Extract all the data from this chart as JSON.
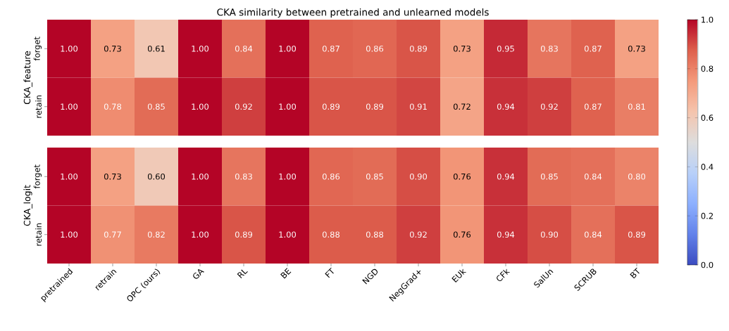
{
  "chart_data": [
    {
      "type": "heatmap",
      "title": "CKA similarity between pretrained and unlearned models",
      "ylabel": "CKA_feature",
      "categories": [
        null,
        null,
        null,
        null,
        null,
        null,
        null,
        null,
        null,
        null,
        null,
        null,
        null,
        null
      ],
      "y_categories": [
        "forget",
        "retain"
      ],
      "cells": [
        [
          1.0,
          0.73,
          0.61,
          1.0,
          0.84,
          1.0,
          0.87,
          0.86,
          0.89,
          0.73,
          0.95,
          0.83,
          0.87,
          0.73
        ],
        [
          1.0,
          0.78,
          0.85,
          1.0,
          0.92,
          1.0,
          0.89,
          0.89,
          0.91,
          0.72,
          0.94,
          0.92,
          0.87,
          0.81
        ]
      ],
      "cell_labels": [
        [
          "1.00",
          "0.73",
          "0.61",
          "1.00",
          "0.84",
          "1.00",
          "0.87",
          "0.86",
          "0.89",
          "0.73",
          "0.95",
          "0.83",
          "0.87",
          "0.73"
        ],
        [
          "1.00",
          "0.78",
          "0.85",
          "1.00",
          "0.92",
          "1.00",
          "0.89",
          "0.89",
          "0.91",
          "0.72",
          "0.94",
          "0.92",
          "0.87",
          "0.81"
        ]
      ],
      "clim": [
        0,
        1
      ],
      "cticks": [
        {
          "value": 0,
          "label": "0.0"
        },
        {
          "value": 0.2,
          "label": "0.2"
        },
        {
          "value": 0.4,
          "label": "0.4"
        },
        {
          "value": 0.6,
          "label": "0.6"
        },
        {
          "value": 0.8,
          "label": "0.8"
        },
        {
          "value": 1,
          "label": "1.0"
        }
      ],
      "tick_labels": "y"
    },
    {
      "type": "heatmap",
      "ylabel": "CKA_logit",
      "categories": [
        "pretrained",
        "retrain",
        "OPC (ours)",
        "GA",
        "RL",
        "BE",
        "FT",
        "NGD",
        "NegGrad+",
        "EUk",
        "CFk",
        "SalUn",
        "SCRUB",
        "BT"
      ],
      "y_categories": [
        "forget",
        "retain"
      ],
      "cells": [
        [
          1.0,
          0.73,
          0.6,
          1.0,
          0.83,
          1.0,
          0.86,
          0.85,
          0.9,
          0.76,
          0.94,
          0.85,
          0.84,
          0.8
        ],
        [
          1.0,
          0.77,
          0.82,
          1.0,
          0.89,
          1.0,
          0.88,
          0.88,
          0.92,
          0.76,
          0.94,
          0.9,
          0.84,
          0.89
        ]
      ],
      "cell_labels": [
        [
          "1.00",
          "0.73",
          "0.60",
          "1.00",
          "0.83",
          "1.00",
          "0.86",
          "0.85",
          "0.90",
          "0.76",
          "0.94",
          "0.85",
          "0.84",
          "0.80"
        ],
        [
          "1.00",
          "0.77",
          "0.82",
          "1.00",
          "0.89",
          "1.00",
          "0.88",
          "0.88",
          "0.92",
          "0.76",
          "0.94",
          "0.90",
          "0.84",
          "0.89"
        ]
      ]
    }
  ]
}
